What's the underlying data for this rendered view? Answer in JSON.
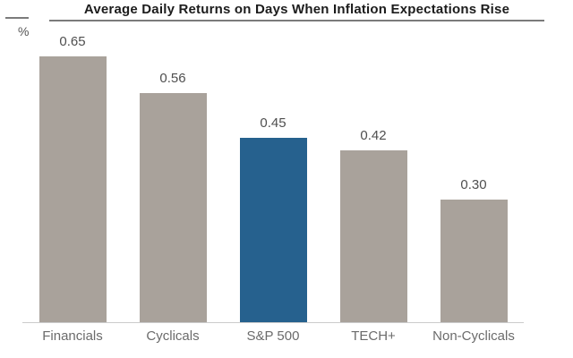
{
  "chart": {
    "title": "Average Daily Returns on Days When Inflation Expectations Rise",
    "y_axis_unit": "%"
  },
  "chart_data": {
    "type": "bar",
    "title": "Average Daily Returns on Days When Inflation Expectations Rise",
    "xlabel": "",
    "ylabel": "%",
    "categories": [
      "Financials",
      "Cyclicals",
      "S&P 500",
      "TECH+",
      "Non-Cyclicals"
    ],
    "values": [
      0.65,
      0.56,
      0.45,
      0.42,
      0.3
    ],
    "value_labels": [
      "0.65",
      "0.56",
      "0.45",
      "0.42",
      "0.30"
    ],
    "bar_colors": [
      "#a9a29b",
      "#a9a29b",
      "#26618e",
      "#a9a29b",
      "#a9a29b"
    ],
    "default_color": "#a9a29b",
    "highlight_color": "#26618e",
    "highlight_index": 2,
    "ylim": [
      0,
      0.72
    ],
    "grid": false,
    "legend": false,
    "data_labels": true
  }
}
